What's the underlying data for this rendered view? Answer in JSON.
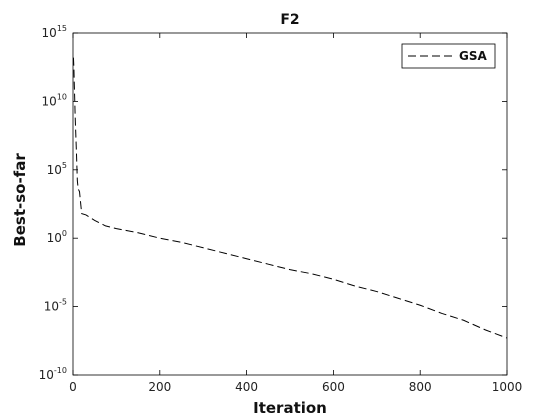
{
  "chart_data": {
    "type": "line",
    "title": "F2",
    "xlabel": "Iteration",
    "ylabel": "Best-so-far",
    "xlim": [
      0,
      1000
    ],
    "ylim_log10": [
      -10,
      15
    ],
    "yscale": "log",
    "grid": false,
    "legend_position": "top-right",
    "x_ticks": [
      {
        "value": 0,
        "label": "0"
      },
      {
        "value": 200,
        "label": "200"
      },
      {
        "value": 400,
        "label": "400"
      },
      {
        "value": 600,
        "label": "600"
      },
      {
        "value": 800,
        "label": "800"
      },
      {
        "value": 1000,
        "label": "1000"
      }
    ],
    "y_ticks": [
      {
        "value": -10,
        "base": "10",
        "exp": "-10"
      },
      {
        "value": -5,
        "base": "10",
        "exp": "-5"
      },
      {
        "value": 0,
        "base": "10",
        "exp": "0"
      },
      {
        "value": 5,
        "base": "10",
        "exp": "5"
      },
      {
        "value": 10,
        "base": "10",
        "exp": "10"
      },
      {
        "value": 15,
        "base": "10",
        "exp": "15"
      }
    ],
    "series": [
      {
        "name": "GSA",
        "line_style": "dashed",
        "color": "#000000",
        "x": [
          1,
          2,
          3,
          4,
          5,
          6,
          8,
          10,
          12,
          15,
          20,
          30,
          50,
          75,
          100,
          150,
          200,
          250,
          300,
          350,
          400,
          450,
          500,
          550,
          600,
          650,
          700,
          750,
          800,
          850,
          900,
          950,
          1000
        ],
        "log10_y": [
          13.2,
          12.5,
          11.2,
          10.1,
          8.9,
          8.0,
          6.2,
          4.2,
          3.6,
          3.4,
          1.8,
          1.7,
          1.3,
          0.9,
          0.7,
          0.4,
          0.0,
          -0.3,
          -0.7,
          -1.1,
          -1.5,
          -1.9,
          -2.3,
          -2.6,
          -3.0,
          -3.5,
          -3.9,
          -4.4,
          -4.9,
          -5.5,
          -6.0,
          -6.7,
          -7.3
        ]
      }
    ]
  }
}
